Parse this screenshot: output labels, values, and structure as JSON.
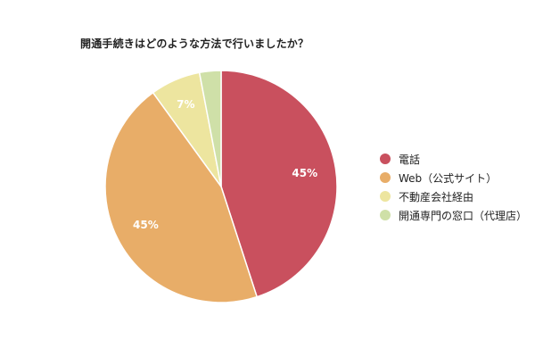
{
  "chart_data": {
    "type": "pie",
    "title": "開通手続きはどのような方法で行いましたか？",
    "legend_position": "right",
    "slices": [
      {
        "label": "電話",
        "value": 45,
        "value_label": "45%",
        "color": "#c9505e"
      },
      {
        "label": "Web（公式サイト）",
        "value": 45,
        "value_label": "45%",
        "color": "#e8ad68"
      },
      {
        "label": "不動産会社経由",
        "value": 7,
        "value_label": "7%",
        "color": "#ede59f"
      },
      {
        "label": "開通専門の窓口（代理店）",
        "value": 3,
        "value_label": "",
        "color": "#cfe0a8"
      }
    ]
  }
}
